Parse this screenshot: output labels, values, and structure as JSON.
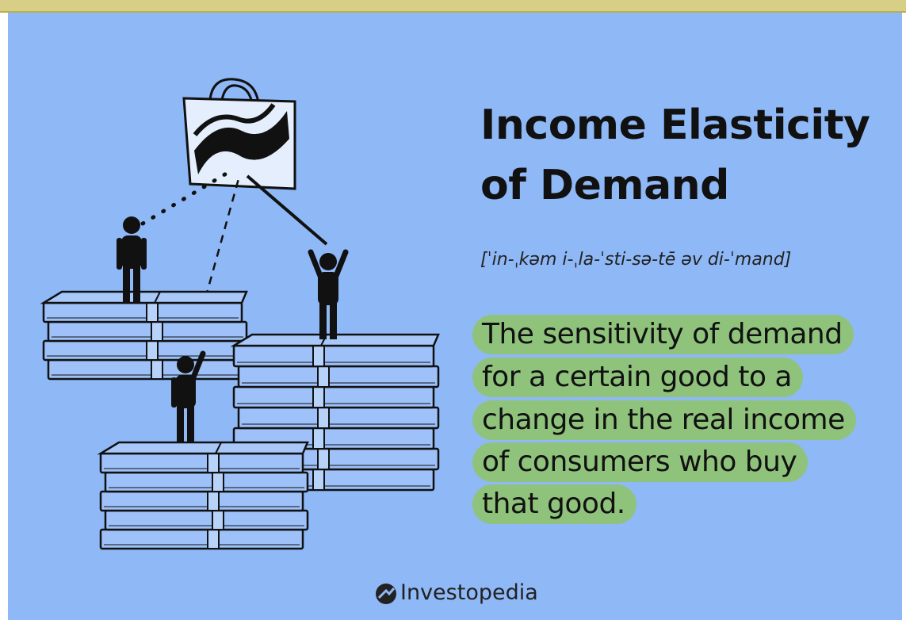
{
  "title_lines": [
    "Income Elasticity",
    "of Demand"
  ],
  "pronunciation": "[ˈin-ˌkəm i-ˌla-ˈsti-sə-tē əv di-ˈmand]",
  "definition_lines": [
    "The sensitivity of demand",
    "for a certain good to a",
    "change in the real income",
    "of consumers who buy",
    "that good."
  ],
  "brand": "Investopedia"
}
